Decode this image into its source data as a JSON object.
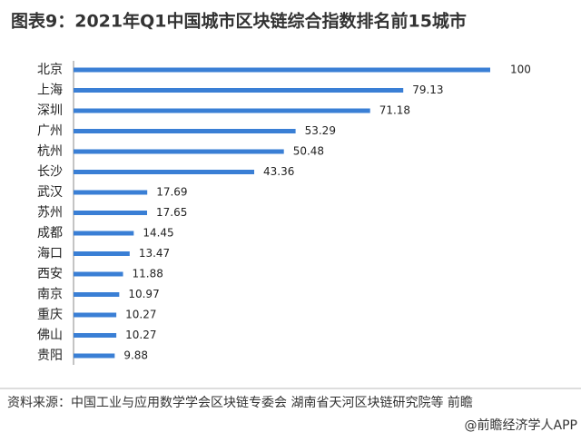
{
  "chart_data": {
    "type": "bar",
    "orientation": "horizontal",
    "title": "图表9：2021年Q1中国城市区块链综合指数排名前15城市",
    "categories": [
      "北京",
      "上海",
      "深圳",
      "广州",
      "杭州",
      "长沙",
      "武汉",
      "苏州",
      "成都",
      "海口",
      "西安",
      "南京",
      "重庆",
      "佛山",
      "贵阳"
    ],
    "values": [
      100,
      79.13,
      71.18,
      53.29,
      50.48,
      43.36,
      17.69,
      17.65,
      14.45,
      13.47,
      11.88,
      10.97,
      10.27,
      10.27,
      9.88
    ],
    "color": "#3a7fd5",
    "source": "资料来源：中国工业与应用数学学会区块链专委会 湖南省天河区块链研究院等 前瞻",
    "credit": "@前瞻经济学人APP"
  }
}
